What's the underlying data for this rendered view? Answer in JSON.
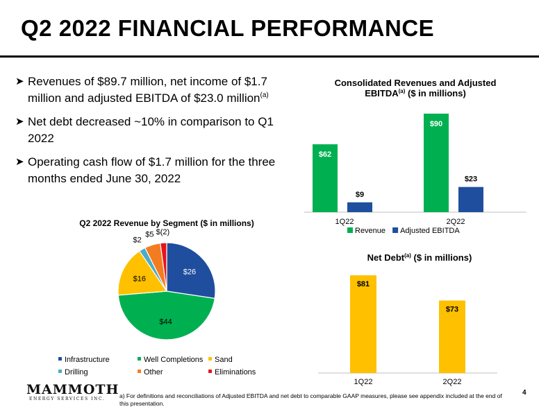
{
  "slide": {
    "title": "Q2 2022 FINANCIAL PERFORMANCE",
    "page_number": "4",
    "footnote": "a) For definitions and reconciliations of Adjusted EBITDA and net debt to comparable GAAP measures, please see appendix included at the end of this presentation.",
    "logo": {
      "name": "MAMMOTH",
      "tagline": "ENERGY SERVICES INC."
    }
  },
  "bullets": [
    {
      "text": "Revenues of $89.7 million, net income of $1.7 million and adjusted EBITDA of $23.0 million",
      "sup": "(a)"
    },
    {
      "text": "Net debt decreased ~10% in comparison to Q1 2022",
      "sup": ""
    },
    {
      "text": "Operating cash flow of $1.7 million for the three months ended June 30, 2022",
      "sup": ""
    }
  ],
  "icons": {
    "bullet": "arrow-bullet-icon"
  },
  "chart_data": [
    {
      "type": "bar",
      "title_main": "Consolidated Revenues and Adjusted",
      "title_line2": "EBITDA",
      "title_sup": "(a)",
      "title_rest": " ($ in millions)",
      "categories": [
        "1Q22",
        "2Q22"
      ],
      "series": [
        {
          "name": "Revenue",
          "values": [
            62,
            90
          ],
          "labels": [
            "$62",
            "$90"
          ],
          "color": "#00B050"
        },
        {
          "name": "Adjusted EBITDA",
          "values": [
            9,
            23
          ],
          "labels": [
            "$9",
            "$23"
          ],
          "color": "#1F4E9E"
        }
      ],
      "ylim": [
        0,
        95
      ],
      "grid": false,
      "legend": "bottom"
    },
    {
      "type": "bar",
      "title_main": "Net Debt",
      "title_sup": "(a)",
      "title_rest": " ($ in millions)",
      "categories": [
        "1Q22",
        "2Q22"
      ],
      "values": [
        81,
        73
      ],
      "labels": [
        "$81",
        "$73"
      ],
      "color": "#FFC000",
      "ylim": [
        50,
        83
      ],
      "grid": false,
      "legend": "none"
    },
    {
      "type": "pie",
      "title": "Q2 2022 Revenue by Segment ($ in millions)",
      "slices": [
        {
          "name": "Infrastructure",
          "value": 26,
          "label": "$26",
          "color": "#1F4E9E"
        },
        {
          "name": "Well Completions",
          "value": 44,
          "label": "$44",
          "color": "#00B050"
        },
        {
          "name": "Sand",
          "value": 16,
          "label": "$16",
          "color": "#FFC000"
        },
        {
          "name": "Drilling",
          "value": 2,
          "label": "$2",
          "color": "#4BACC6"
        },
        {
          "name": "Other",
          "value": 5,
          "label": "$5",
          "color": "#F47C20"
        },
        {
          "name": "Eliminations",
          "value": 2,
          "label": "$(2)",
          "color": "#E8141B"
        }
      ],
      "legend": "bottom"
    }
  ]
}
